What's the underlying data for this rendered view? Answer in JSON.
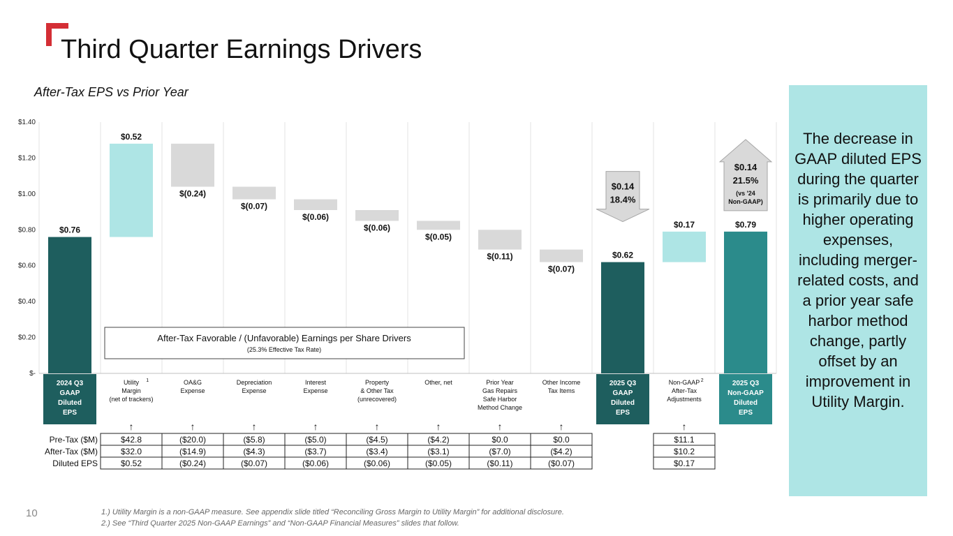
{
  "title": "Third Quarter Earnings Drivers",
  "subtitle": "After-Tax EPS vs Prior Year",
  "sidebar_text": "The decrease in GAAP diluted EPS during the quarter is primarily due to higher operating expenses, including merger-related costs, and a prior year safe harbor method change, partly offset by an improvement in Utility Margin.",
  "page_number": "10",
  "footnotes": [
    "1.) Utility Margin is a non-GAAP measure. See appendix slide titled “Reconciling Gross Margin to Utility Margin” for additional disclosure.",
    "2.) See “Third Quarter 2025 Non-GAAP Earnings” and “Non-GAAP Financial Measures” slides that follow."
  ],
  "colors": {
    "accent_red": "#d42e35",
    "dark_teal": "#1e5e5e",
    "teal": "#2b8b8b",
    "light_teal": "#aee5e5",
    "gray_bar": "#d9d9d9",
    "arrow_gray": "#d9d9d9"
  },
  "chart_data": {
    "type": "bar",
    "subtype": "waterfall",
    "ylim": [
      0,
      1.4
    ],
    "y_ticks": [
      {
        "value": 1.4,
        "label": "$1.40"
      },
      {
        "value": 1.2,
        "label": "$1.20"
      },
      {
        "value": 1.0,
        "label": "$1.00"
      },
      {
        "value": 0.8,
        "label": "$0.80"
      },
      {
        "value": 0.6,
        "label": "$0.60"
      },
      {
        "value": 0.4,
        "label": "$0.40"
      },
      {
        "value": 0.2,
        "label": "$0.20"
      },
      {
        "value": 0,
        "label": "$-"
      }
    ],
    "bars": [
      {
        "category": "2024 Q3 GAAP Diluted EPS",
        "kind": "total",
        "style": "dark",
        "start": 0,
        "end": 0.76,
        "value_label": "$0.76"
      },
      {
        "category": "Utility Margin (net of trackers)",
        "kind": "delta",
        "style": "light",
        "start": 0.76,
        "end": 1.28,
        "value_label": "$0.52"
      },
      {
        "category": "OA&G Expense",
        "kind": "delta",
        "style": "gray",
        "start": 1.28,
        "end": 1.04,
        "value_label": "$(0.24)"
      },
      {
        "category": "Depreciation Expense",
        "kind": "delta",
        "style": "gray",
        "start": 1.04,
        "end": 0.97,
        "value_label": "$(0.07)"
      },
      {
        "category": "Interest Expense",
        "kind": "delta",
        "style": "gray",
        "start": 0.97,
        "end": 0.91,
        "value_label": "$(0.06)"
      },
      {
        "category": "Property & Other Tax (unrecovered)",
        "kind": "delta",
        "style": "gray",
        "start": 0.91,
        "end": 0.85,
        "value_label": "$(0.06)"
      },
      {
        "category": "Other, net",
        "kind": "delta",
        "style": "gray",
        "start": 0.85,
        "end": 0.8,
        "value_label": "$(0.05)"
      },
      {
        "category": "Prior Year Gas Repairs Safe Harbor Method Change",
        "kind": "delta",
        "style": "gray",
        "start": 0.8,
        "end": 0.69,
        "value_label": "$(0.11)"
      },
      {
        "category": "Other Income Tax Items",
        "kind": "delta",
        "style": "gray",
        "start": 0.69,
        "end": 0.62,
        "value_label": "$(0.07)"
      },
      {
        "category": "2025 Q3 GAAP Diluted EPS",
        "kind": "total",
        "style": "dark",
        "start": 0,
        "end": 0.62,
        "value_label": "$0.62"
      },
      {
        "category": "Non-GAAP After-Tax Adjustments",
        "kind": "delta",
        "style": "light",
        "start": 0.62,
        "end": 0.79,
        "value_label": "$0.17"
      },
      {
        "category": "2025 Q3 Non-GAAP Diluted EPS",
        "kind": "total",
        "style": "teal",
        "start": 0,
        "end": 0.79,
        "value_label": "$0.79"
      }
    ],
    "category_labels": [
      {
        "lines": [
          "2024 Q3",
          "GAAP",
          "Diluted",
          "EPS"
        ],
        "sup": "",
        "highlight": "dark"
      },
      {
        "lines": [
          "Utility",
          "Margin",
          "(net of trackers)"
        ],
        "sup": "1",
        "highlight": ""
      },
      {
        "lines": [
          "OA&G",
          "Expense"
        ],
        "sup": "",
        "highlight": ""
      },
      {
        "lines": [
          "Depreciation",
          "Expense"
        ],
        "sup": "",
        "highlight": ""
      },
      {
        "lines": [
          "Interest",
          "Expense"
        ],
        "sup": "",
        "highlight": ""
      },
      {
        "lines": [
          "Property",
          "& Other Tax",
          "(unrecovered)"
        ],
        "sup": "",
        "highlight": ""
      },
      {
        "lines": [
          "Other, net"
        ],
        "sup": "",
        "highlight": ""
      },
      {
        "lines": [
          "Prior Year",
          "Gas Repairs",
          "Safe Harbor",
          "Method Change"
        ],
        "sup": "",
        "highlight": ""
      },
      {
        "lines": [
          "Other Income",
          "Tax Items"
        ],
        "sup": "",
        "highlight": ""
      },
      {
        "lines": [
          "2025 Q3",
          "GAAP",
          "Diluted",
          "EPS"
        ],
        "sup": "",
        "highlight": "dark"
      },
      {
        "lines": [
          "Non-GAAP",
          "After-Tax",
          "Adjustments"
        ],
        "sup": "2",
        "highlight": ""
      },
      {
        "lines": [
          "2025 Q3",
          "Non-GAAP",
          "Diluted",
          "EPS"
        ],
        "sup": "",
        "highlight": "teal"
      }
    ],
    "callouts": [
      {
        "category": "2025 Q3 GAAP Diluted EPS",
        "direction": "down",
        "lines": [
          "$0.14",
          "18.4%"
        ]
      },
      {
        "category": "2025 Q3 Non-GAAP Diluted EPS",
        "direction": "up",
        "lines": [
          "$0.14",
          "21.5%",
          "(vs '24",
          "Non-GAAP)"
        ]
      }
    ],
    "annotation": {
      "title": "After-Tax Favorable / (Unfavorable) Earnings per Share Drivers",
      "subtitle": "(25.3% Effective Tax Rate)"
    },
    "arrow_glyph": "↑",
    "table": {
      "row_labels": [
        "Pre-Tax ($M)",
        "After-Tax ($M)",
        "Diluted EPS"
      ],
      "columns": [
        {
          "category": "Utility Margin (net of trackers)",
          "values": [
            "$42.8",
            "$32.0",
            "$0.52"
          ]
        },
        {
          "category": "OA&G Expense",
          "values": [
            "($20.0)",
            "($14.9)",
            "($0.24)"
          ]
        },
        {
          "category": "Depreciation Expense",
          "values": [
            "($5.8)",
            "($4.3)",
            "($0.07)"
          ]
        },
        {
          "category": "Interest Expense",
          "values": [
            "($5.0)",
            "($3.7)",
            "($0.06)"
          ]
        },
        {
          "category": "Property & Other Tax (unrecovered)",
          "values": [
            "($4.5)",
            "($3.4)",
            "($0.06)"
          ]
        },
        {
          "category": "Other, net",
          "values": [
            "($4.2)",
            "($3.1)",
            "($0.05)"
          ]
        },
        {
          "category": "Prior Year Gas Repairs Safe Harbor Method Change",
          "values": [
            "$0.0",
            "($7.0)",
            "($0.11)"
          ]
        },
        {
          "category": "Other Income Tax Items",
          "values": [
            "$0.0",
            "($4.2)",
            "($0.07)"
          ]
        },
        {
          "category": "Non-GAAP After-Tax Adjustments",
          "values": [
            "$11.1",
            "$10.2",
            "$0.17"
          ]
        }
      ]
    }
  }
}
